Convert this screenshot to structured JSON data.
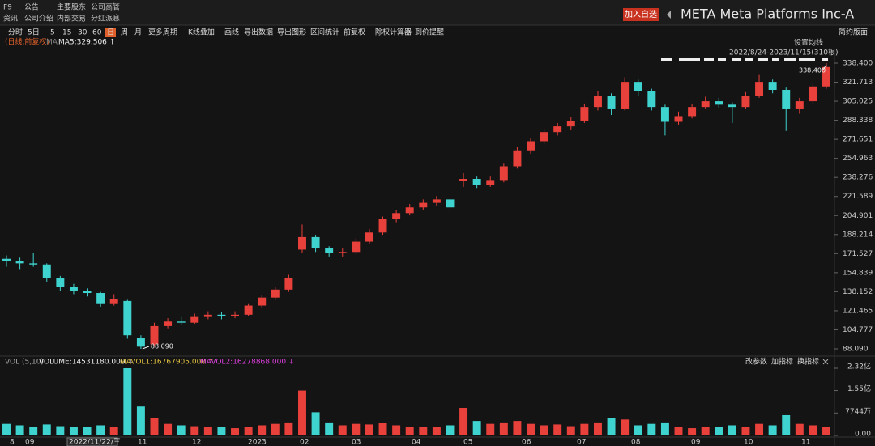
{
  "menu": {
    "row1": [
      "F9",
      "公告",
      "主要股东",
      "公司高管"
    ],
    "row2": [
      "资讯",
      "公司介绍",
      "内部交易",
      "分红派息"
    ]
  },
  "header": {
    "button": "加入自选",
    "title": "META Meta Platforms Inc-A"
  },
  "toolbar": {
    "items": [
      "分时",
      "5日",
      "5",
      "15",
      "30",
      "60",
      "日",
      "周",
      "月",
      "更多周期",
      "K线叠加",
      "画线",
      "导出数据",
      "导出图形",
      "区间统计",
      "前复权",
      "除权计算器",
      "到价提醒"
    ],
    "active_index": 6,
    "right": "简约版面"
  },
  "price_chart": {
    "label": "(日线,前复权)",
    "ma_name": "MA",
    "ma5": "MA5:329.506 ↑",
    "ma_settings": "设置均线",
    "range": "2022/8/24-2023/11/15(310根)",
    "yticks": [
      {
        "value": 338.4,
        "label": "338.400"
      },
      {
        "value": 321.713,
        "label": "321.713"
      },
      {
        "value": 305.025,
        "label": "305.025"
      },
      {
        "value": 288.338,
        "label": "288.338"
      },
      {
        "value": 271.651,
        "label": "271.651"
      },
      {
        "value": 254.963,
        "label": "254.963"
      },
      {
        "value": 238.276,
        "label": "238.276"
      },
      {
        "value": 221.589,
        "label": "221.589"
      },
      {
        "value": 204.901,
        "label": "204.901"
      },
      {
        "value": 188.214,
        "label": "188.214"
      },
      {
        "value": 171.527,
        "label": "171.527"
      },
      {
        "value": 154.839,
        "label": "154.839"
      },
      {
        "value": 138.152,
        "label": "138.152"
      },
      {
        "value": 121.465,
        "label": "121.465"
      },
      {
        "value": 104.777,
        "label": "104.777"
      },
      {
        "value": 88.09,
        "label": "88.090"
      }
    ],
    "high": {
      "value": 338.4,
      "label": "338.400"
    },
    "low": {
      "value": 88.09,
      "label": "88.090"
    },
    "up_color": "#e8403a",
    "down_color": "#3fd3cf",
    "candles": [
      [
        167,
        170,
        160,
        165
      ],
      [
        165,
        168,
        158,
        163
      ],
      [
        163,
        172,
        160,
        162
      ],
      [
        162,
        163,
        147,
        150
      ],
      [
        150,
        152,
        139,
        142
      ],
      [
        142,
        145,
        136,
        139
      ],
      [
        139,
        141,
        134,
        137
      ],
      [
        137,
        138,
        125,
        128
      ],
      [
        128,
        136,
        126,
        132
      ],
      [
        130,
        131,
        97,
        100
      ],
      [
        98,
        100,
        88.09,
        90
      ],
      [
        92,
        111,
        90,
        108
      ],
      [
        108,
        115,
        106,
        112
      ],
      [
        112,
        116,
        109,
        111
      ],
      [
        111,
        119,
        110,
        116
      ],
      [
        116,
        121,
        114,
        118
      ],
      [
        118,
        120,
        114,
        117
      ],
      [
        117,
        121,
        115,
        118
      ],
      [
        118,
        128,
        117,
        126
      ],
      [
        126,
        135,
        124,
        133
      ],
      [
        133,
        142,
        131,
        140
      ],
      [
        140,
        153,
        138,
        150
      ],
      [
        175,
        197,
        172,
        186
      ],
      [
        186,
        188,
        173,
        176
      ],
      [
        176,
        178,
        169,
        172
      ],
      [
        172,
        176,
        169,
        173
      ],
      [
        173,
        185,
        171,
        182
      ],
      [
        182,
        193,
        180,
        190
      ],
      [
        190,
        204,
        188,
        202
      ],
      [
        202,
        210,
        199,
        207
      ],
      [
        207,
        215,
        205,
        212
      ],
      [
        212,
        219,
        210,
        216
      ],
      [
        216,
        222,
        213,
        219
      ],
      [
        219,
        220,
        207,
        212
      ],
      [
        235,
        242,
        230,
        237
      ],
      [
        237,
        239,
        229,
        232
      ],
      [
        232,
        239,
        230,
        236
      ],
      [
        236,
        251,
        234,
        248
      ],
      [
        248,
        265,
        246,
        262
      ],
      [
        262,
        273,
        259,
        270
      ],
      [
        270,
        281,
        267,
        278
      ],
      [
        278,
        286,
        275,
        283
      ],
      [
        283,
        291,
        280,
        288
      ],
      [
        288,
        303,
        286,
        300
      ],
      [
        300,
        314,
        297,
        310
      ],
      [
        310,
        312,
        293,
        298
      ],
      [
        298,
        326,
        297,
        322
      ],
      [
        322,
        324,
        310,
        314
      ],
      [
        314,
        316,
        297,
        300
      ],
      [
        300,
        302,
        275,
        287
      ],
      [
        287,
        296,
        284,
        292
      ],
      [
        292,
        303,
        290,
        300
      ],
      [
        300,
        309,
        298,
        305
      ],
      [
        305,
        308,
        299,
        302
      ],
      [
        302,
        304,
        286,
        300
      ],
      [
        300,
        313,
        298,
        310
      ],
      [
        310,
        328,
        308,
        322
      ],
      [
        322,
        324,
        312,
        315
      ],
      [
        315,
        317,
        279,
        298
      ],
      [
        298,
        308,
        294,
        305
      ],
      [
        305,
        321,
        303,
        318
      ],
      [
        318,
        338.4,
        316,
        335
      ]
    ]
  },
  "volume_chart": {
    "label": "VOL (5,10)",
    "volume": "VOLUME:14531180.000 ↓",
    "mavol1": "MAVOL1:16767905.000 ↑",
    "mavol2": "MAVOL2:16278868.000 ↓",
    "buttons": [
      "改参数",
      "加指标",
      "换指标"
    ],
    "yticks": [
      {
        "value": 232000000,
        "label": "2.32亿"
      },
      {
        "value": 155000000,
        "label": "1.55亿"
      },
      {
        "value": 77440000,
        "label": "7744万"
      },
      {
        "value": 0,
        "label": "0.00"
      }
    ],
    "values": [
      40000000,
      35000000,
      30000000,
      38000000,
      32000000,
      30000000,
      28000000,
      35000000,
      30000000,
      232000000,
      100000000,
      60000000,
      40000000,
      35000000,
      32000000,
      30000000,
      28000000,
      25000000,
      30000000,
      35000000,
      40000000,
      45000000,
      155000000,
      80000000,
      45000000,
      35000000,
      40000000,
      38000000,
      42000000,
      35000000,
      30000000,
      28000000,
      30000000,
      35000000,
      95000000,
      50000000,
      40000000,
      45000000,
      50000000,
      40000000,
      35000000,
      38000000,
      32000000,
      40000000,
      45000000,
      60000000,
      55000000,
      35000000,
      40000000,
      45000000,
      30000000,
      25000000,
      28000000,
      30000000,
      35000000,
      30000000,
      40000000,
      35000000,
      70000000,
      40000000,
      35000000,
      30000000
    ]
  },
  "x_axis": {
    "labels": [
      "8",
      "09",
      "11",
      "12",
      "2023",
      "02",
      "03",
      "04",
      "05",
      "06",
      "07",
      "08",
      "09",
      "10",
      "11"
    ],
    "cursor_date": "2022/11/22/三"
  }
}
